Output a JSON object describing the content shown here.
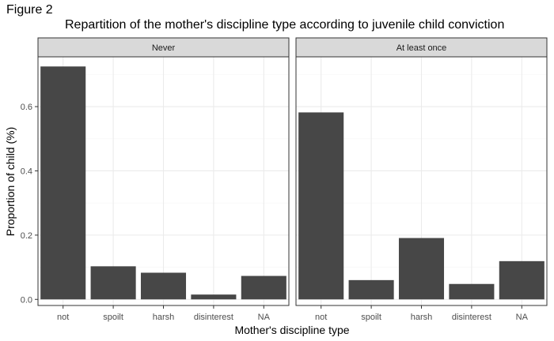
{
  "figure_label": "Figure 2",
  "chart_data": {
    "type": "bar",
    "title": "Repartition of the mother's discipline type according to juvenile child conviction",
    "xlabel": "Mother's discipline type",
    "ylabel": "Proportion of child (%)",
    "categories": [
      "not",
      "spoilt",
      "harsh",
      "disinterest",
      "NA"
    ],
    "ylim": [
      -0.019,
      0.755
    ],
    "yticks": [
      0.0,
      0.2,
      0.4,
      0.6
    ],
    "ytick_labels": [
      "0.0",
      "0.2",
      "0.4",
      "0.6"
    ],
    "grid": true,
    "panels": [
      {
        "name": "Never",
        "values": [
          0.725,
          0.103,
          0.083,
          0.015,
          0.073
        ]
      },
      {
        "name": "At least once",
        "values": [
          0.582,
          0.06,
          0.191,
          0.048,
          0.119
        ]
      }
    ],
    "colors": {
      "bar": "#474747",
      "strip_fill": "#d9d9d9",
      "strip_border": "#333333",
      "panel_border": "#333333",
      "grid_major": "#ebebeb",
      "grid_minor": "#f5f5f5",
      "text": "#4d4d4d"
    }
  }
}
